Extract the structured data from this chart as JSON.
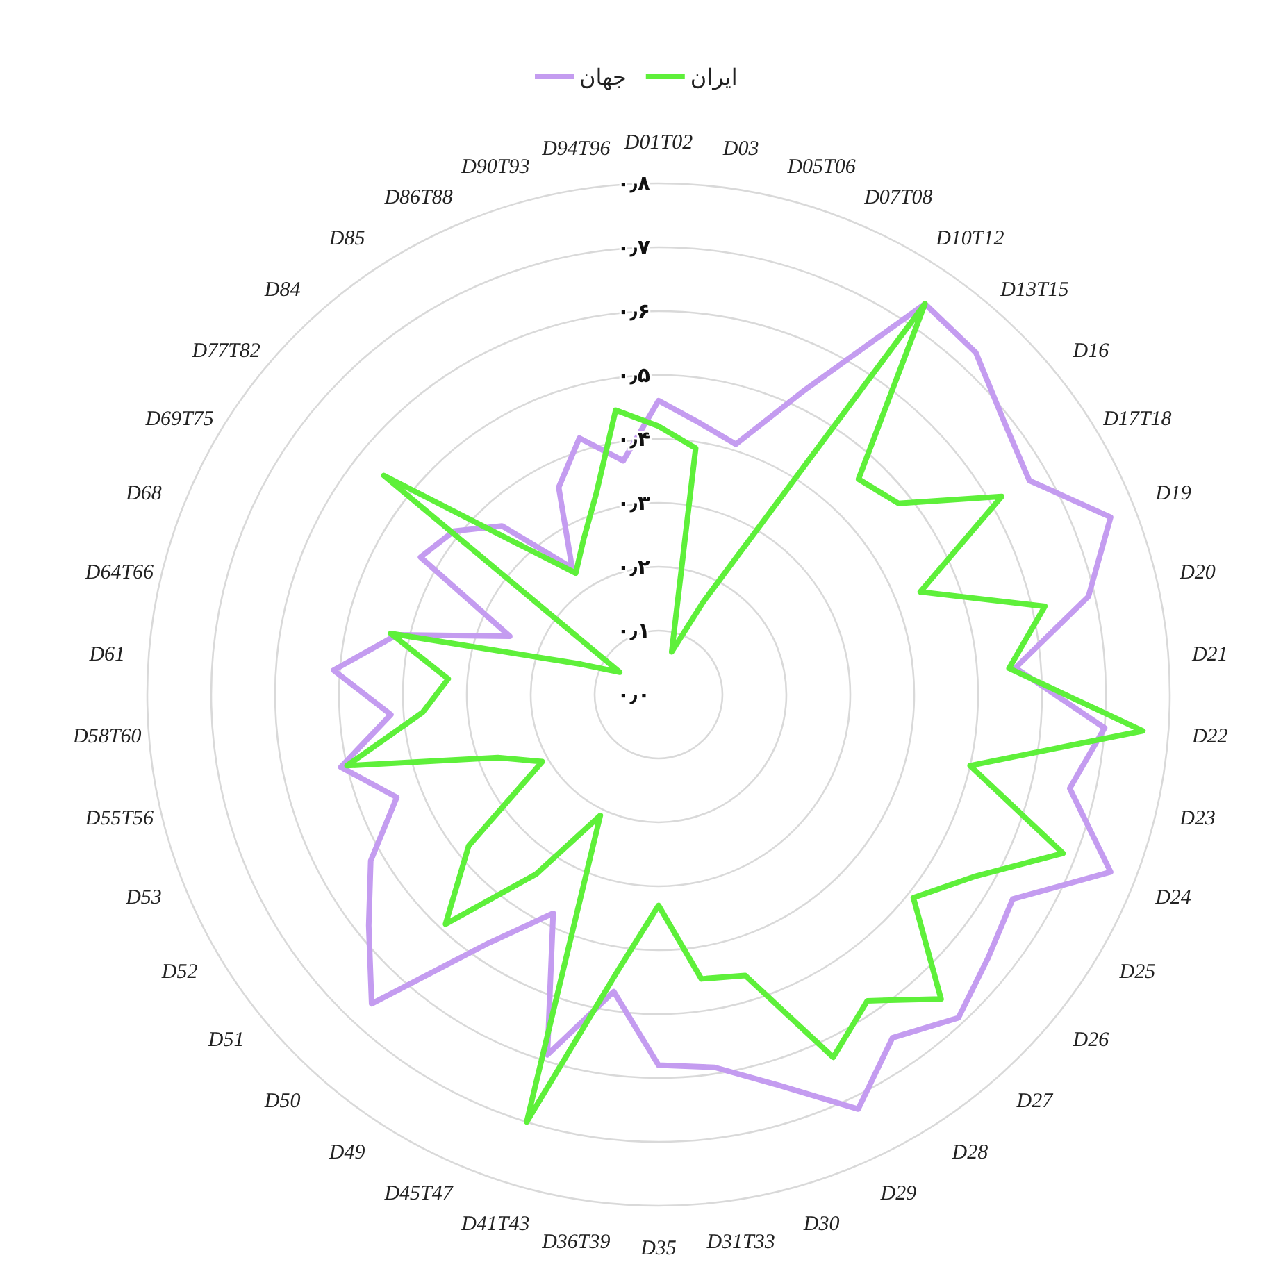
{
  "chart_data": {
    "type": "radar",
    "categories": [
      "D01T02",
      "D03",
      "D05T06",
      "D07T08",
      "D10T12",
      "D13T15",
      "D16",
      "D17T18",
      "D19",
      "D20",
      "D21",
      "D22",
      "D23",
      "D24",
      "D25",
      "D26",
      "D27",
      "D28",
      "D29",
      "D30",
      "D31T33",
      "D35",
      "D36T39",
      "D41T43",
      "D45T47",
      "D49",
      "D50",
      "D51",
      "D52",
      "D53",
      "D55T56",
      "D58T60",
      "D61",
      "D64T66",
      "D68",
      "D69T75",
      "D77T82",
      "D84",
      "D85",
      "D86T88",
      "D90T93",
      "D94T96"
    ],
    "series": [
      {
        "name": "جهان",
        "color": "#c49cf0",
        "values": [
          0.46,
          0.43,
          0.41,
          0.53,
          0.74,
          0.73,
          0.69,
          0.67,
          0.76,
          0.69,
          0.56,
          0.7,
          0.66,
          0.76,
          0.64,
          0.66,
          0.69,
          0.65,
          0.72,
          0.64,
          0.59,
          0.58,
          0.47,
          0.59,
          0.38,
          0.47,
          0.66,
          0.58,
          0.52,
          0.44,
          0.51,
          0.42,
          0.51,
          0.42,
          0.25,
          0.43,
          0.41,
          0.36,
          0.24,
          0.36,
          0.42,
          0.37
        ]
      },
      {
        "name": "ایران",
        "color": "#5ef03a",
        "values": [
          0.42,
          0.39,
          0.07,
          0.16,
          0.74,
          0.46,
          0.48,
          0.62,
          0.44,
          0.62,
          0.55,
          0.76,
          0.5,
          0.68,
          0.57,
          0.51,
          0.65,
          0.58,
          0.63,
          0.46,
          0.45,
          0.33,
          0.44,
          0.7,
          0.21,
          0.34,
          0.49,
          0.38,
          0.21,
          0.27,
          0.5,
          0.37,
          0.33,
          0.43,
          0.13,
          0.07,
          0.55,
          0.32,
          0.23,
          0.27,
          0.33,
          0.45
        ]
      }
    ],
    "ylim": [
      0,
      0.8
    ],
    "yticks": [
      {
        "value": 0,
        "label": "۰٫۰"
      },
      {
        "value": 0.1,
        "label": "۰٫۱"
      },
      {
        "value": 0.2,
        "label": "۰٫۲"
      },
      {
        "value": 0.3,
        "label": "۰٫۳"
      },
      {
        "value": 0.4,
        "label": "۰٫۴"
      },
      {
        "value": 0.5,
        "label": "۰٫۵"
      },
      {
        "value": 0.6,
        "label": "۰٫۶"
      },
      {
        "value": 0.7,
        "label": "۰٫۷"
      },
      {
        "value": 0.8,
        "label": "۰٫۸"
      }
    ],
    "grid": true,
    "legend": "top",
    "marker": "none",
    "line_style": "solid"
  }
}
